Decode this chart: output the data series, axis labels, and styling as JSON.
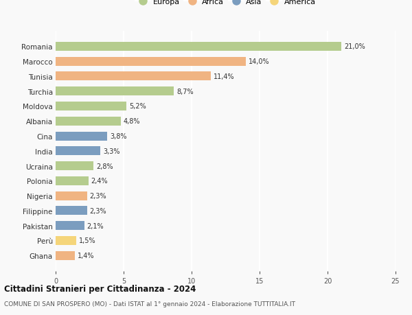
{
  "countries": [
    "Romania",
    "Marocco",
    "Tunisia",
    "Turchia",
    "Moldova",
    "Albania",
    "Cina",
    "India",
    "Ucraina",
    "Polonia",
    "Nigeria",
    "Filippine",
    "Pakistan",
    "Perù",
    "Ghana"
  ],
  "values": [
    21.0,
    14.0,
    11.4,
    8.7,
    5.2,
    4.8,
    3.8,
    3.3,
    2.8,
    2.4,
    2.3,
    2.3,
    2.1,
    1.5,
    1.4
  ],
  "labels": [
    "21,0%",
    "14,0%",
    "11,4%",
    "8,7%",
    "5,2%",
    "4,8%",
    "3,8%",
    "3,3%",
    "2,8%",
    "2,4%",
    "2,3%",
    "2,3%",
    "2,1%",
    "1,5%",
    "1,4%"
  ],
  "continents": [
    "Europa",
    "Africa",
    "Africa",
    "Europa",
    "Europa",
    "Europa",
    "Asia",
    "Asia",
    "Europa",
    "Europa",
    "Africa",
    "Asia",
    "Asia",
    "America",
    "Africa"
  ],
  "continent_colors": {
    "Europa": "#b5cc8e",
    "Africa": "#f0b482",
    "Asia": "#7b9dbf",
    "America": "#f5d57a"
  },
  "legend_order": [
    "Europa",
    "Africa",
    "Asia",
    "America"
  ],
  "xlim": [
    0,
    25
  ],
  "xticks": [
    0,
    5,
    10,
    15,
    20,
    25
  ],
  "title": "Cittadini Stranieri per Cittadinanza - 2024",
  "subtitle": "COMUNE DI SAN PROSPERO (MO) - Dati ISTAT al 1° gennaio 2024 - Elaborazione TUTTITALIA.IT",
  "background_color": "#f9f9f9",
  "grid_color": "#ffffff",
  "bar_height": 0.6
}
